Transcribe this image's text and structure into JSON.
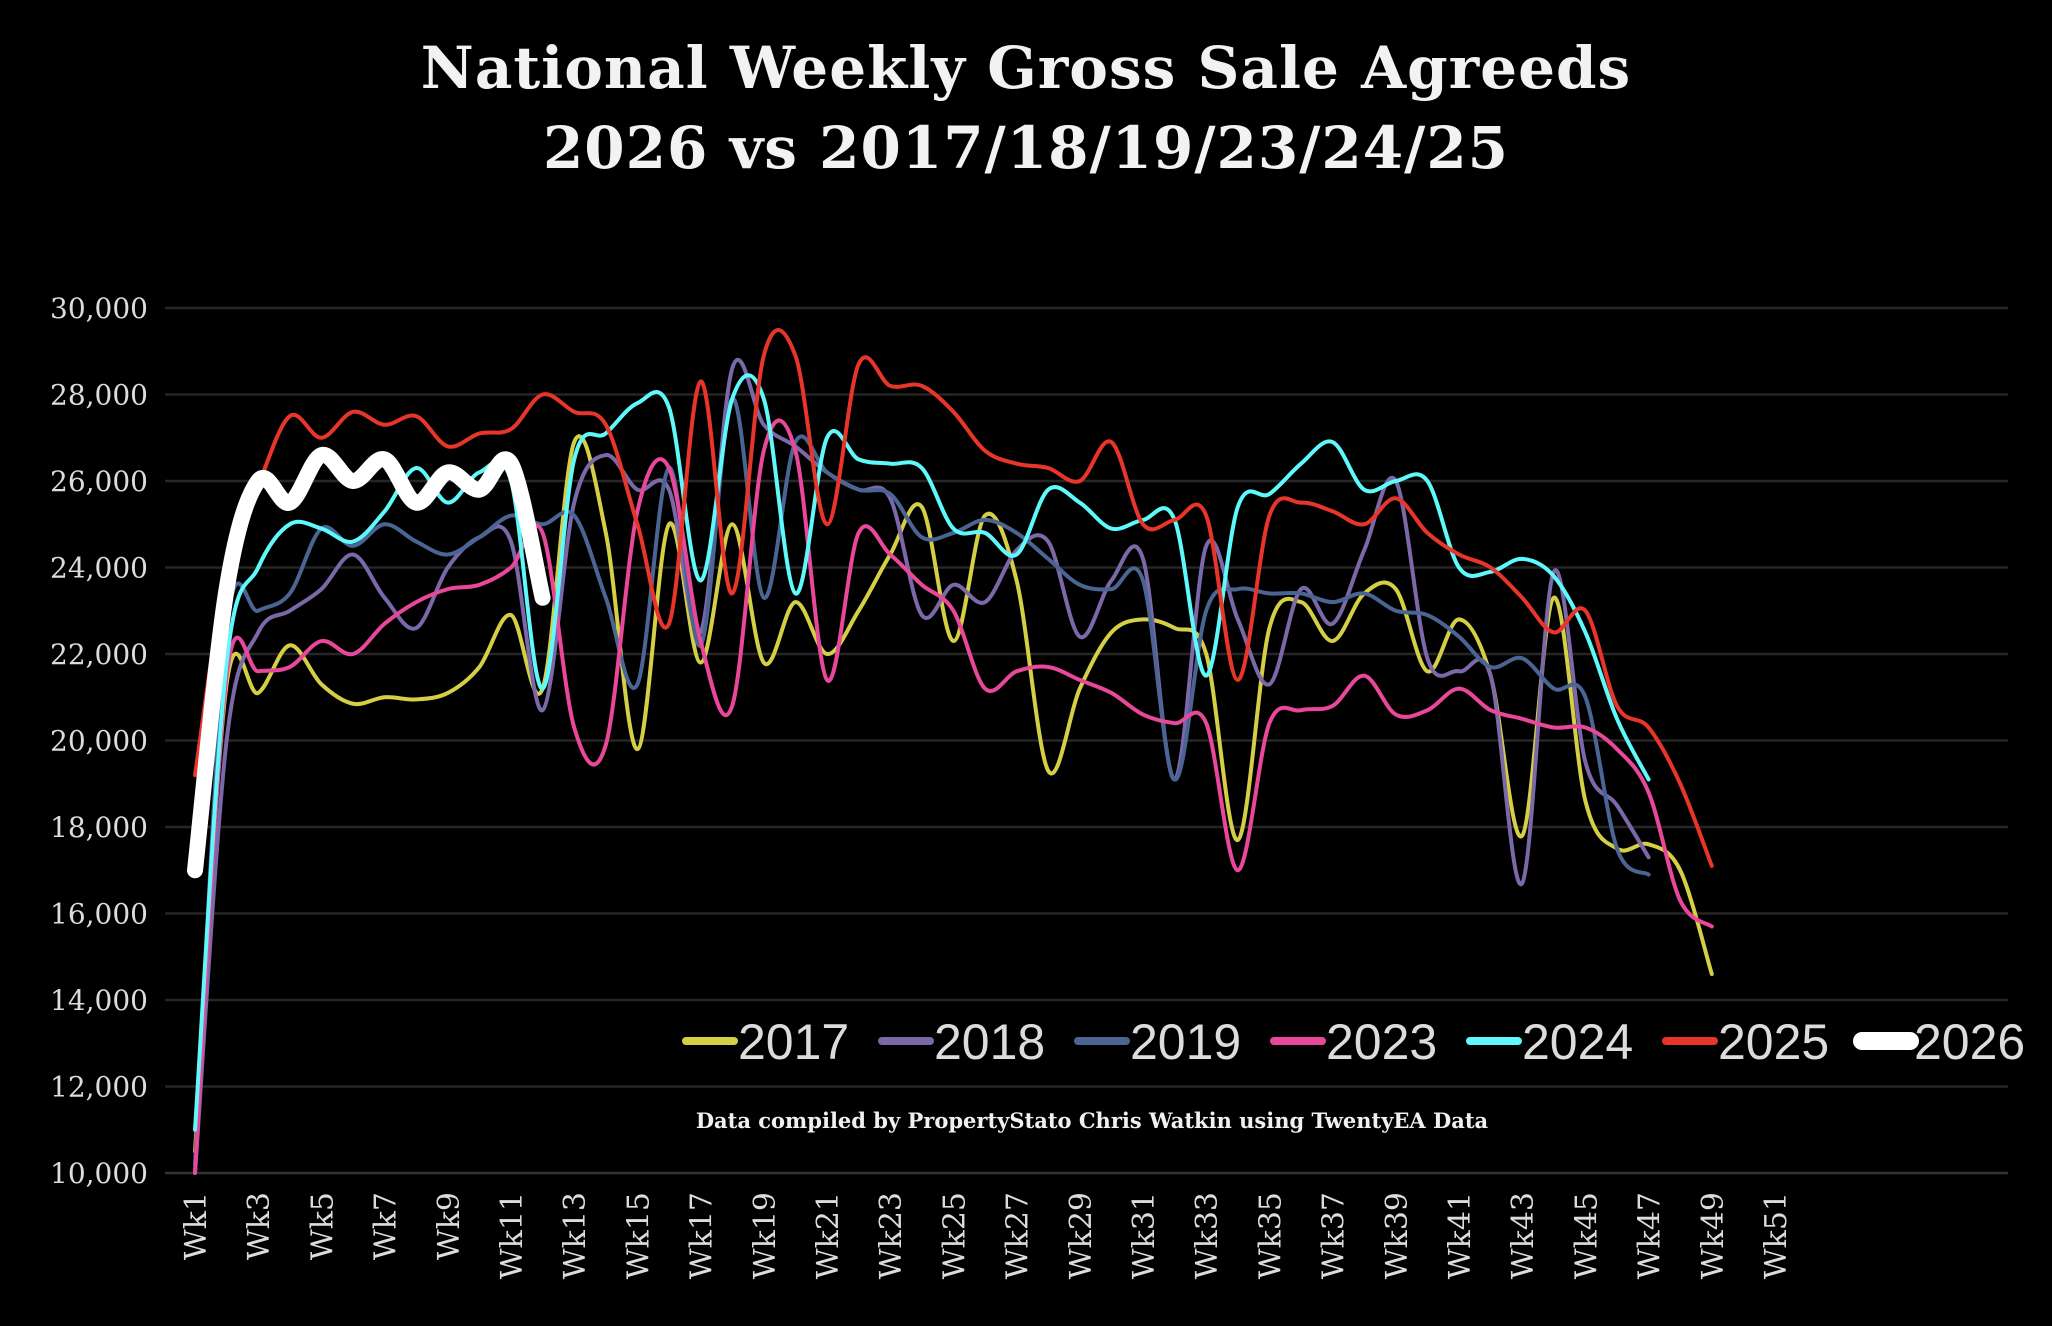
{
  "chart_data": {
    "type": "line",
    "title_line1": "National Weekly Gross Sale Agreeds",
    "title_line2": "2026 vs 2017/18/19/23/24/25",
    "xlabel": "",
    "ylabel": "",
    "ylim": [
      10000,
      30000
    ],
    "yticks": [
      10000,
      12000,
      14000,
      16000,
      18000,
      20000,
      22000,
      24000,
      26000,
      28000,
      30000
    ],
    "ytick_labels": [
      "10,000",
      "12,000",
      "14,000",
      "16,000",
      "18,000",
      "20,000",
      "22,000",
      "24,000",
      "26,000",
      "28,000",
      "30,000"
    ],
    "xticks": [
      "Wk1",
      "Wk3",
      "Wk5",
      "Wk7",
      "Wk9",
      "Wk11",
      "Wk13",
      "Wk15",
      "Wk17",
      "Wk19",
      "Wk21",
      "Wk23",
      "Wk25",
      "Wk27",
      "Wk29",
      "Wk31",
      "Wk33",
      "Wk35",
      "Wk37",
      "Wk39",
      "Wk41",
      "Wk43",
      "Wk45",
      "Wk47",
      "Wk49",
      "Wk51"
    ],
    "x_range_weeks": [
      1,
      52
    ],
    "grid": true,
    "legend_position": "bottom-right-inside",
    "annotation": "Data compiled by PropertyStato Chris Watkin using TwentyEA Data",
    "series": [
      {
        "name": "2017",
        "color": "#d4cf45",
        "width": 4,
        "values": [
          10500,
          21300,
          21100,
          22200,
          21300,
          20850,
          21000,
          20950,
          21100,
          21700,
          22900,
          21200,
          26900,
          24800,
          19800,
          25000,
          21800,
          25000,
          21800,
          23200,
          22000,
          23000,
          24300,
          25400,
          22300,
          25200,
          23700,
          19300,
          21200,
          22500,
          22800,
          22600,
          22000,
          17700,
          22600,
          23200,
          22300,
          23400,
          23500,
          21600,
          22800,
          21500,
          17800,
          23300,
          18600,
          17500,
          17600,
          17000,
          14600
        ]
      },
      {
        "name": "2018",
        "color": "#7b68a8",
        "width": 4,
        "values": [
          10000,
          20000,
          22500,
          23000,
          23500,
          24300,
          23300,
          22600,
          24000,
          24700,
          24600,
          20700,
          25500,
          26600,
          25800,
          25800,
          22500,
          28600,
          27300,
          26800,
          26200,
          25800,
          25600,
          22900,
          23600,
          23200,
          24400,
          24600,
          22400,
          23700,
          24200,
          19100,
          24500,
          22800,
          21300,
          23500,
          22700,
          24400,
          26000,
          21900,
          21600,
          21500,
          16700,
          23900,
          19500,
          18500,
          17300
        ]
      },
      {
        "name": "2019",
        "color": "#4a6594",
        "width": 4,
        "values": [
          10200,
          22600,
          23000,
          23400,
          24900,
          24500,
          25000,
          24600,
          24300,
          24700,
          25200,
          25000,
          25200,
          23300,
          21300,
          26300,
          22200,
          27900,
          23300,
          26900,
          26200,
          25800,
          25700,
          24700,
          24800,
          25100,
          24800,
          24200,
          23600,
          23500,
          23700,
          19100,
          23000,
          23500,
          23400,
          23400,
          23200,
          23400,
          23000,
          22900,
          22400,
          21700,
          21900,
          21200,
          21000,
          17500,
          16900
        ]
      },
      {
        "name": "2023",
        "color": "#e8479a",
        "width": 4,
        "values": [
          10000,
          21500,
          21600,
          21700,
          22300,
          22000,
          22700,
          23200,
          23500,
          23600,
          24000,
          24800,
          20300,
          19900,
          25300,
          26300,
          22300,
          20800,
          26700,
          26700,
          21400,
          24800,
          24300,
          23600,
          23000,
          21200,
          21600,
          21700,
          21400,
          21100,
          20600,
          20400,
          20400,
          17000,
          20400,
          20700,
          20800,
          21500,
          20600,
          20700,
          21200,
          20700,
          20500,
          20300,
          20300,
          19800,
          18800,
          16300,
          15700
        ]
      },
      {
        "name": "2024",
        "color": "#5ff9fc",
        "width": 4,
        "values": [
          11000,
          21800,
          24000,
          25000,
          24900,
          24600,
          25300,
          26300,
          25500,
          26200,
          26000,
          21200,
          26500,
          27100,
          27800,
          27700,
          23700,
          27900,
          27900,
          23400,
          27000,
          26500,
          26400,
          26300,
          24900,
          24800,
          24300,
          25800,
          25500,
          24900,
          25100,
          25100,
          21500,
          25400,
          25700,
          26400,
          26900,
          25800,
          26000,
          26000,
          24000,
          23900,
          24200,
          23800,
          22500,
          20500,
          19100
        ]
      },
      {
        "name": "2025",
        "color": "#e8352a",
        "width": 4,
        "values": [
          19200,
          24000,
          25900,
          27500,
          27000,
          27600,
          27300,
          27500,
          26800,
          27100,
          27200,
          28000,
          27600,
          27300,
          25000,
          22700,
          28300,
          23400,
          28900,
          28900,
          25000,
          28700,
          28200,
          28200,
          27600,
          26700,
          26400,
          26300,
          26000,
          26900,
          25000,
          25100,
          25200,
          21400,
          25200,
          25500,
          25300,
          25000,
          25600,
          24800,
          24300,
          24000,
          23300,
          22500,
          23000,
          20800,
          20300,
          19000,
          17100
        ]
      },
      {
        "name": "2026",
        "color": "#ffffff",
        "width": 16,
        "values": [
          17000,
          23500,
          26000,
          25500,
          26600,
          26000,
          26500,
          25500,
          26200,
          25800,
          26400,
          23300
        ]
      }
    ]
  }
}
